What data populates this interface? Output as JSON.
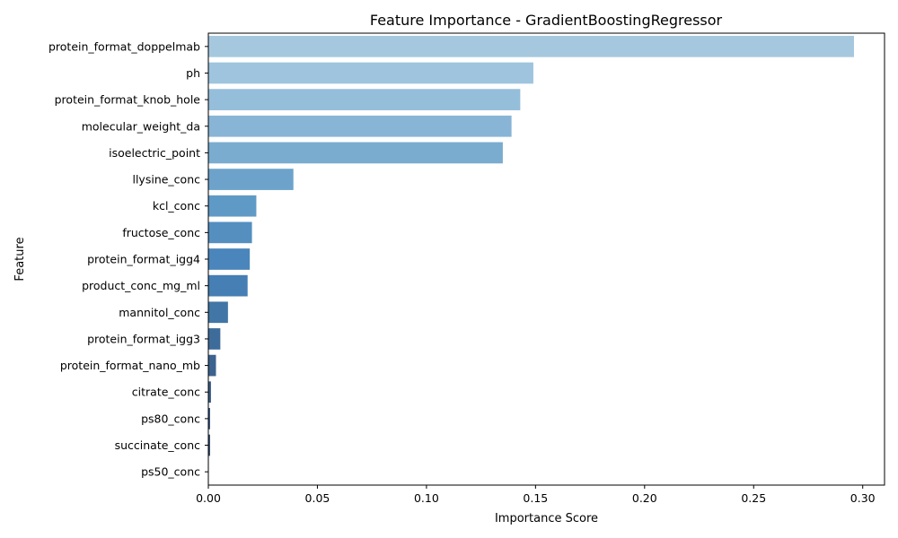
{
  "chart_data": {
    "type": "bar",
    "orientation": "horizontal",
    "title": "Feature Importance - GradientBoostingRegressor",
    "xlabel": "Importance Score",
    "ylabel": "Feature",
    "xlim": [
      0,
      0.31
    ],
    "xticks": [
      "0.00",
      "0.05",
      "0.10",
      "0.15",
      "0.20",
      "0.25",
      "0.30"
    ],
    "xtick_values": [
      0,
      0.05,
      0.1,
      0.15,
      0.2,
      0.25,
      0.3
    ],
    "grid": false,
    "categories": [
      "protein_format_doppelmab",
      "ph",
      "protein_format_knob_hole",
      "molecular_weight_da",
      "isoelectric_point",
      "llysine_conc",
      "kcl_conc",
      "fructose_conc",
      "protein_format_igg4",
      "product_conc_mg_ml",
      "mannitol_conc",
      "protein_format_igg3",
      "protein_format_nano_mb",
      "citrate_conc",
      "ps80_conc",
      "succinate_conc",
      "ps50_conc"
    ],
    "values": [
      0.296,
      0.149,
      0.143,
      0.139,
      0.135,
      0.039,
      0.022,
      0.02,
      0.019,
      0.018,
      0.009,
      0.0055,
      0.0035,
      0.0012,
      0.0008,
      0.0008,
      0.0001
    ],
    "colors": [
      "#a6c8df",
      "#9ec4de",
      "#95bedb",
      "#88b5d5",
      "#7aaccf",
      "#6da3cb",
      "#5f9ac6",
      "#548fc0",
      "#4a86bc",
      "#457fb3",
      "#4176a6",
      "#3e6c9a",
      "#3b638e",
      "#375a82",
      "#345176",
      "#30486b",
      "#2d4060"
    ]
  }
}
